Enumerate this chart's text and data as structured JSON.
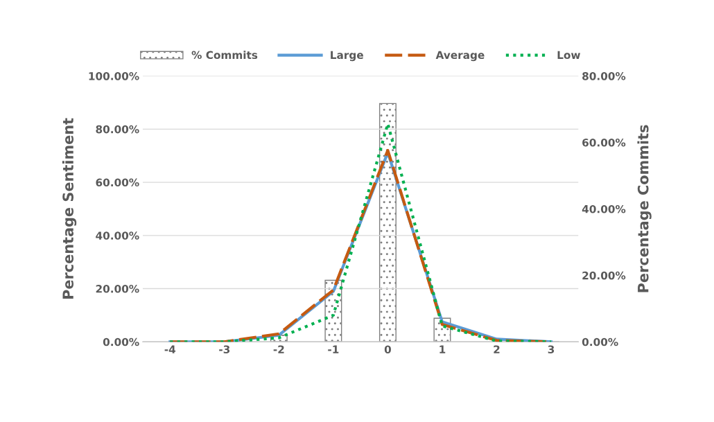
{
  "chart_data": {
    "type": "line",
    "categories": [
      "-4",
      "-3",
      "-2",
      "-1",
      "0",
      "1",
      "2",
      "3"
    ],
    "ylabel": "Percentage Sentiment",
    "y2label": "Percentage Commits",
    "series": [
      {
        "name": "% Commits",
        "type": "bar",
        "axis": "y2",
        "color": "#7f7f7f",
        "values": [
          null,
          0,
          2,
          18.5,
          71.7,
          7.1,
          null,
          0
        ]
      },
      {
        "name": "Large",
        "color": "#5b9bd5",
        "line_style": "solid",
        "values": [
          0,
          0,
          2.5,
          19,
          71.2,
          7.5,
          1,
          0
        ]
      },
      {
        "name": "Average",
        "color": "#c55a11",
        "line_style": "dashed",
        "values": [
          0,
          0,
          3,
          19.5,
          72,
          6.5,
          0.5,
          0
        ]
      },
      {
        "name": "Low",
        "color": "#00b050",
        "line_style": "dotted",
        "values": [
          0,
          0,
          1.5,
          10,
          82,
          6,
          0.3,
          0
        ]
      }
    ],
    "ylim": [
      0,
      100
    ],
    "yticks": [
      {
        "value": 0,
        "label": "0.00%"
      },
      {
        "value": 20,
        "label": "20.00%"
      },
      {
        "value": 40,
        "label": "40.00%"
      },
      {
        "value": 60,
        "label": "60.00%"
      },
      {
        "value": 80,
        "label": "80.00%"
      },
      {
        "value": 100,
        "label": "100.00%"
      }
    ],
    "y2lim": [
      0,
      80
    ],
    "y2ticks": [
      {
        "value": 0,
        "label": "0.00%"
      },
      {
        "value": 20,
        "label": "20.00%"
      },
      {
        "value": 40,
        "label": "40.00%"
      },
      {
        "value": 60,
        "label": "60.00%"
      },
      {
        "value": 80,
        "label": "80.00%"
      }
    ],
    "grid": "y",
    "legend": "top",
    "marker": "none"
  }
}
